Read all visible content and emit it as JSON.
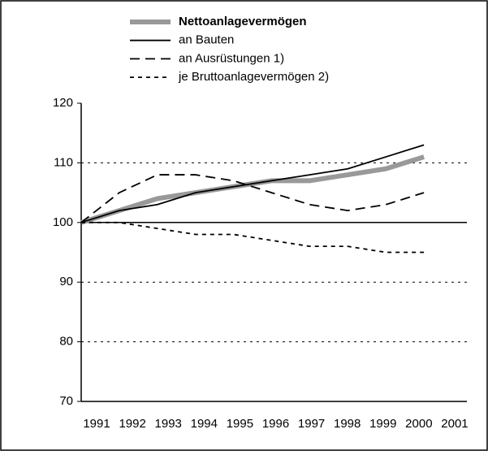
{
  "chart_data": {
    "type": "line",
    "categories": [
      "1991",
      "1992",
      "1993",
      "1994",
      "1995",
      "1996",
      "1997",
      "1998",
      "1999",
      "2000",
      "2001"
    ],
    "series": [
      {
        "name": "Nettoanlagevermögen",
        "color": "#999999",
        "style": "thick",
        "values": [
          100,
          102,
          104,
          105,
          106,
          107,
          107,
          108,
          109,
          111,
          null
        ]
      },
      {
        "name": "an Bauten",
        "color": "#000000",
        "style": "solid",
        "values": [
          100,
          102,
          103,
          105,
          106,
          107,
          108,
          109,
          111,
          113,
          null
        ]
      },
      {
        "name": "an Ausrüstungen 1)",
        "color": "#000000",
        "style": "dashed",
        "values": [
          100,
          105,
          108,
          108,
          107,
          105,
          103,
          102,
          103,
          105,
          null
        ]
      },
      {
        "name": "je Bruttoanlagevermögen 2)",
        "color": "#000000",
        "style": "dotted",
        "values": [
          100,
          100,
          99,
          98,
          98,
          97,
          96,
          96,
          95,
          95,
          null
        ]
      }
    ],
    "ylim": [
      70,
      120
    ],
    "yticks": [
      70,
      80,
      90,
      100,
      110,
      120
    ],
    "grid": true,
    "reference_line": 100,
    "legend": "top"
  }
}
